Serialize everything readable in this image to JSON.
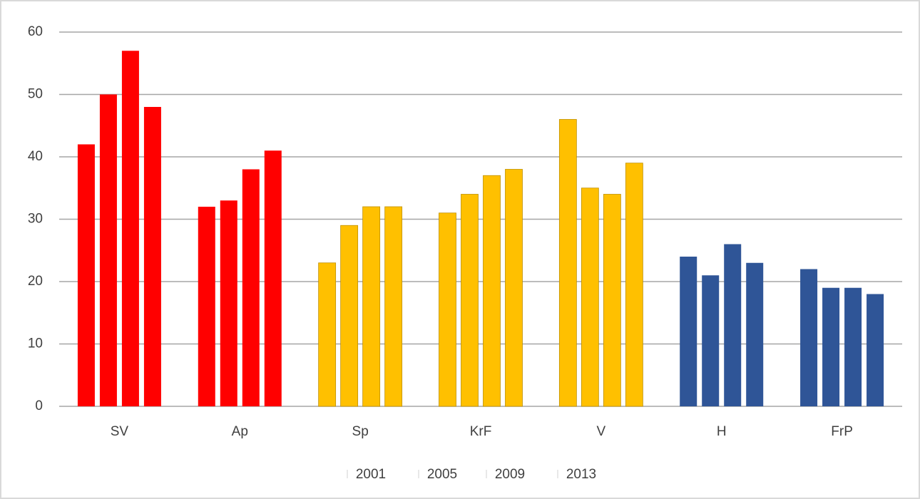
{
  "chart_data": {
    "type": "bar",
    "categories": [
      "SV",
      "Ap",
      "Sp",
      "KrF",
      "V",
      "H",
      "FrP"
    ],
    "category_colors": [
      "#ff0000",
      "#ff0000",
      "#ffc000",
      "#ffc000",
      "#ffc000",
      "#2f5597",
      "#2f5597"
    ],
    "series": [
      {
        "name": "2001",
        "values": [
          42,
          32,
          23,
          31,
          46,
          24,
          22
        ]
      },
      {
        "name": "2005",
        "values": [
          50,
          33,
          29,
          34,
          35,
          21,
          19
        ]
      },
      {
        "name": "2009",
        "values": [
          57,
          38,
          32,
          37,
          34,
          26,
          19
        ]
      },
      {
        "name": "2013",
        "values": [
          48,
          41,
          32,
          38,
          39,
          23,
          18
        ]
      }
    ],
    "ylim": [
      0,
      60
    ],
    "yticks": [
      0,
      10,
      20,
      30,
      40,
      50,
      60
    ],
    "grid": true,
    "legend": "bottom"
  }
}
